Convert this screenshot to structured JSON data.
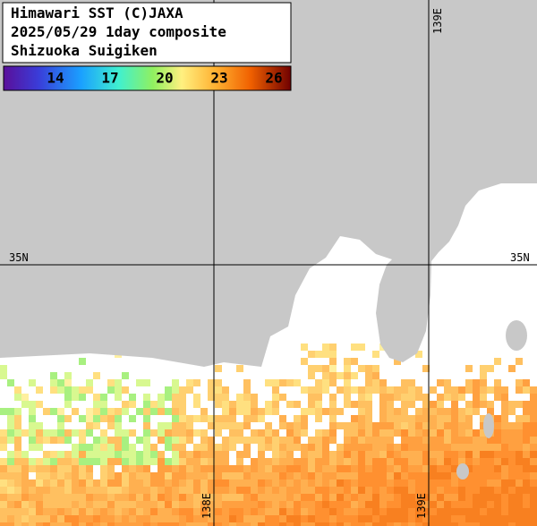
{
  "header": {
    "lines": [
      "Himawari SST (C)JAXA",
      "2025/05/29 1day composite",
      "Shizuoka Suigiken"
    ]
  },
  "colorbar": {
    "labels": [
      14,
      17,
      20,
      23,
      26
    ]
  },
  "grid": {
    "latitude": "35N",
    "longitudes": [
      "138E",
      "139E"
    ]
  }
}
